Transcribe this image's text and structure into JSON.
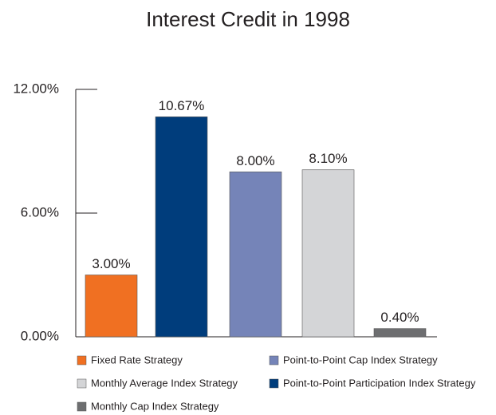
{
  "chart_data": {
    "type": "bar",
    "title": "Interest Credit in 1998",
    "categories": [
      "Fixed Rate Strategy",
      "Point-to-Point Participation Index Strategy",
      "Point-to-Point Cap Index Strategy",
      "Monthly Average Index Strategy",
      "Monthly Cap Index Strategy"
    ],
    "values": [
      3,
      10.67,
      8,
      8.1,
      0.4
    ],
    "value_labels": [
      "3.00%",
      "10.67%",
      "8.00%",
      "8.10%",
      "0.40%"
    ],
    "colors": [
      "#f07022",
      "#003d7c",
      "#7584b8",
      "#d4d5d7",
      "#6d6e70"
    ],
    "ylim": [
      0,
      12
    ],
    "yticks": [
      {
        "value": 0,
        "label": "0.00%"
      },
      {
        "value": 6,
        "label": "6.00%"
      },
      {
        "value": 12,
        "label": "12.00%"
      }
    ]
  }
}
